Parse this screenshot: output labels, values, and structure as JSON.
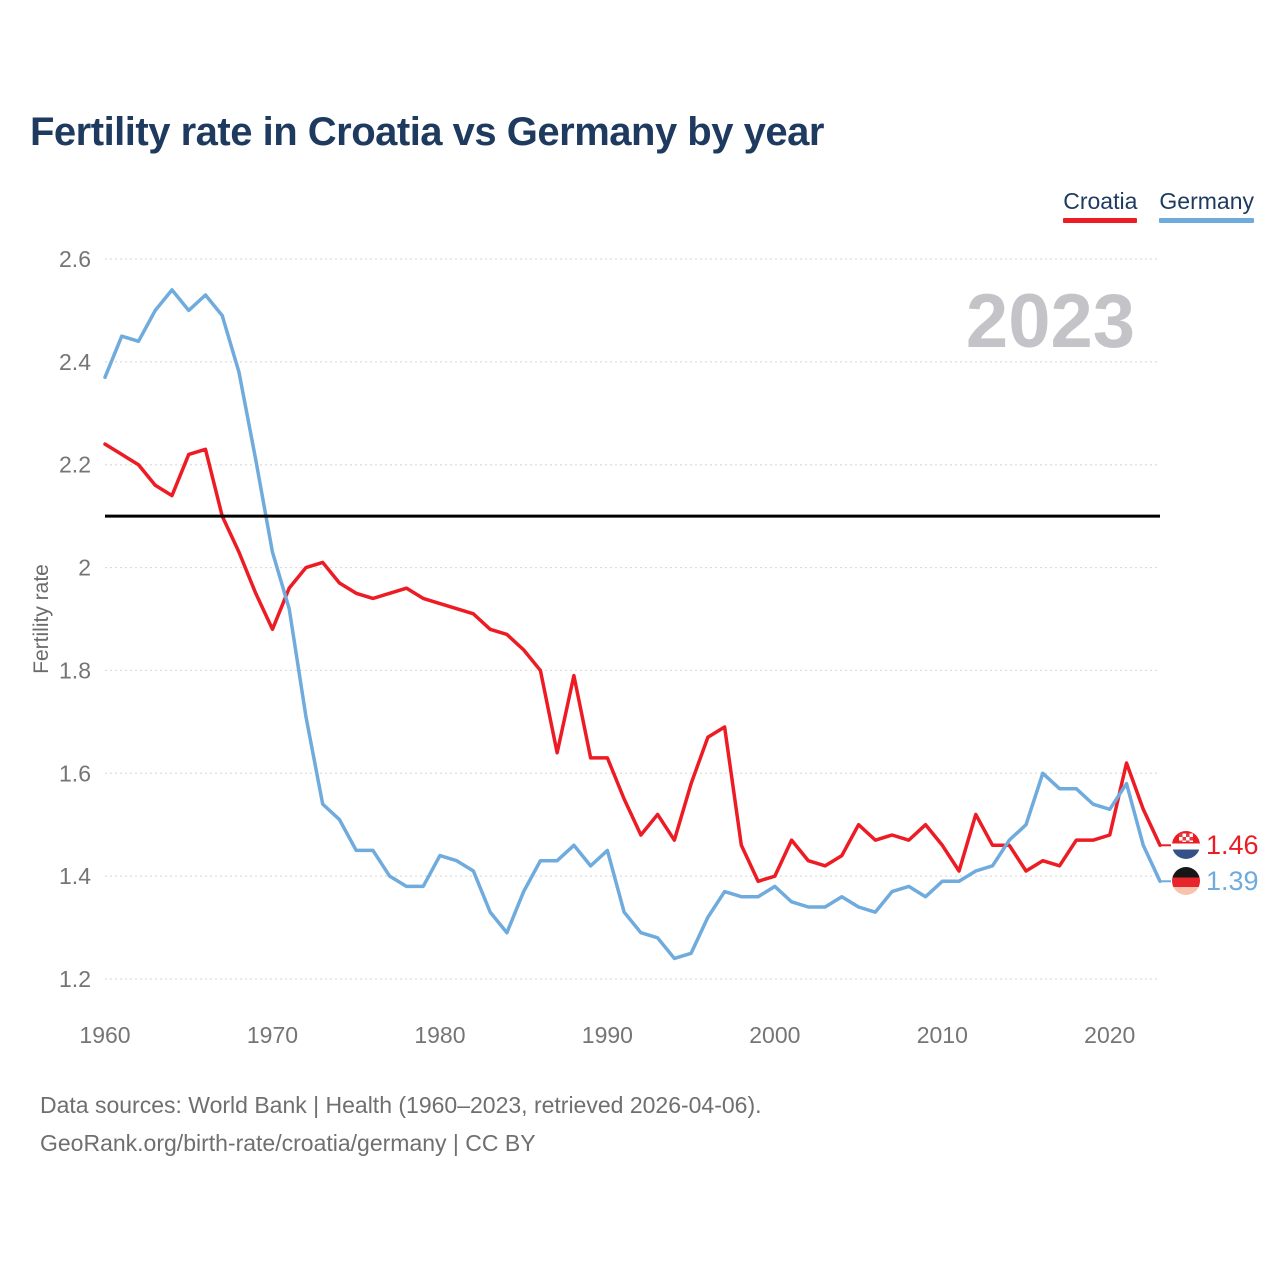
{
  "page": {
    "background": "#ffffff"
  },
  "header": {
    "title": "Fertility rate in Croatia vs Germany by year"
  },
  "legend": [
    {
      "label": "Croatia",
      "color": "#ed1c24"
    },
    {
      "label": "Germany",
      "color": "#6fabdd"
    }
  ],
  "watermark": "2023",
  "y_axis": {
    "label": "Fertility rate",
    "ticks": [
      "2.6",
      "2.4",
      "2.2",
      "2",
      "1.8",
      "1.6",
      "1.4",
      "1.2"
    ]
  },
  "x_axis": {
    "ticks": [
      "1960",
      "1970",
      "1980",
      "1990",
      "2000",
      "2010",
      "2020"
    ]
  },
  "reference_line": {
    "value": 2.1,
    "color": "#000000"
  },
  "end_labels": [
    {
      "series": "Croatia",
      "value": "1.46",
      "flag": "croatia-flag"
    },
    {
      "series": "Germany",
      "value": "1.39",
      "flag": "germany-flag"
    }
  ],
  "footer": {
    "line1": "Data sources: World Bank | Health (1960–2023, retrieved 2026-04-06).",
    "line2": "GeoRank.org/birth-rate/croatia/germany | CC BY"
  },
  "chart_data": {
    "type": "line",
    "title": "Fertility rate in Croatia vs Germany by year",
    "xlabel": "",
    "ylabel": "Fertility rate",
    "xlim": [
      1960,
      2023
    ],
    "ylim": [
      1.2,
      2.6
    ],
    "x_ticks": [
      1960,
      1970,
      1980,
      1990,
      2000,
      2010,
      2020
    ],
    "y_ticks": [
      2.6,
      2.4,
      2.2,
      2.0,
      1.8,
      1.6,
      1.4,
      1.2
    ],
    "grid": true,
    "legend_position": "top-right",
    "reference_line": 2.1,
    "x": [
      1960,
      1961,
      1962,
      1963,
      1964,
      1965,
      1966,
      1967,
      1968,
      1969,
      1970,
      1971,
      1972,
      1973,
      1974,
      1975,
      1976,
      1977,
      1978,
      1979,
      1980,
      1981,
      1982,
      1983,
      1984,
      1985,
      1986,
      1987,
      1988,
      1989,
      1990,
      1991,
      1992,
      1993,
      1994,
      1995,
      1996,
      1997,
      1998,
      1999,
      2000,
      2001,
      2002,
      2003,
      2004,
      2005,
      2006,
      2007,
      2008,
      2009,
      2010,
      2011,
      2012,
      2013,
      2014,
      2015,
      2016,
      2017,
      2018,
      2019,
      2020,
      2021,
      2022,
      2023
    ],
    "series": [
      {
        "name": "Croatia",
        "color": "#ed1c24",
        "values": [
          2.24,
          2.22,
          2.2,
          2.16,
          2.14,
          2.22,
          2.23,
          2.1,
          2.03,
          1.95,
          1.88,
          1.96,
          2.0,
          2.01,
          1.97,
          1.95,
          1.94,
          1.95,
          1.96,
          1.94,
          1.93,
          1.92,
          1.91,
          1.88,
          1.87,
          1.84,
          1.8,
          1.64,
          1.79,
          1.63,
          1.63,
          1.55,
          1.48,
          1.52,
          1.47,
          1.58,
          1.67,
          1.69,
          1.46,
          1.39,
          1.4,
          1.47,
          1.43,
          1.42,
          1.44,
          1.5,
          1.47,
          1.48,
          1.47,
          1.5,
          1.46,
          1.41,
          1.52,
          1.46,
          1.46,
          1.41,
          1.43,
          1.42,
          1.47,
          1.47,
          1.48,
          1.62,
          1.53,
          1.46
        ]
      },
      {
        "name": "Germany",
        "color": "#6fabdd",
        "values": [
          2.37,
          2.45,
          2.44,
          2.5,
          2.54,
          2.5,
          2.53,
          2.49,
          2.38,
          2.21,
          2.03,
          1.92,
          1.71,
          1.54,
          1.51,
          1.45,
          1.45,
          1.4,
          1.38,
          1.38,
          1.44,
          1.43,
          1.41,
          1.33,
          1.29,
          1.37,
          1.43,
          1.43,
          1.46,
          1.42,
          1.45,
          1.33,
          1.29,
          1.28,
          1.24,
          1.25,
          1.32,
          1.37,
          1.36,
          1.36,
          1.38,
          1.35,
          1.34,
          1.34,
          1.36,
          1.34,
          1.33,
          1.37,
          1.38,
          1.36,
          1.39,
          1.39,
          1.41,
          1.42,
          1.47,
          1.5,
          1.6,
          1.57,
          1.57,
          1.54,
          1.53,
          1.58,
          1.46,
          1.39
        ]
      }
    ]
  }
}
